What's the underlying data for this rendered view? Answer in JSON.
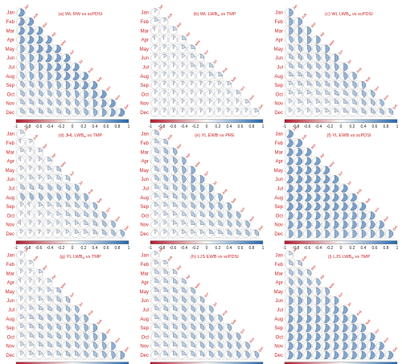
{
  "chart_data": {
    "type": "heatmap",
    "chart_kind": "correlogram-lower-triangle-pie",
    "rows": [
      "Jan",
      "Feb",
      "Mar",
      "Apr",
      "May",
      "Jun",
      "Jul",
      "Aug",
      "Sep",
      "Oct",
      "Nov",
      "Dec"
    ],
    "row_label_color": "#cc2222",
    "diag_label_color": "#cc2222",
    "colorbar": {
      "ticks": [
        "-1",
        "-0.8",
        "-0.6",
        "-0.4",
        "-0.2",
        "0",
        "0.2",
        "0.4",
        "0.6",
        "0.8",
        "1"
      ],
      "range": [
        -1,
        1
      ],
      "neg_color": "#b2182b",
      "mid_color": "#f7f7f7",
      "pos_color": "#2166ac"
    },
    "panels": [
      {
        "title": "(a) WL RW vs scPDSI",
        "values": [
          [
            0.6
          ],
          [
            0.6,
            0.6
          ],
          [
            0.6,
            0.6,
            0.6
          ],
          [
            0.55,
            0.6,
            0.6,
            0.6
          ],
          [
            0.5,
            0.55,
            0.6,
            0.6,
            0.6
          ],
          [
            0.45,
            0.5,
            0.55,
            0.6,
            0.6,
            0.6
          ],
          [
            0.45,
            0.45,
            0.5,
            0.55,
            0.6,
            0.6,
            0.6
          ],
          [
            0.4,
            0.45,
            0.45,
            0.5,
            0.55,
            0.6,
            0.6,
            0.6
          ],
          [
            0.35,
            0.35,
            0.4,
            0.45,
            0.45,
            0.5,
            0.55,
            0.6,
            0.6
          ],
          [
            0.35,
            0.35,
            0.35,
            0.35,
            0.4,
            0.4,
            0.45,
            0.5,
            0.55,
            0.6
          ],
          [
            0.3,
            0.3,
            0.3,
            0.35,
            0.35,
            0.35,
            0.4,
            0.45,
            0.5,
            0.55,
            0.6
          ],
          [
            0.3,
            0.3,
            0.3,
            0.3,
            0.3,
            0.35,
            0.35,
            0.4,
            0.45,
            0.5,
            0.55,
            0.6
          ]
        ]
      },
      {
        "title": "(b) WL LWB",
        "title_sub": "w",
        "title_post": " vs TMP",
        "values": [
          [
            0.1
          ],
          [
            0.2,
            0.15
          ],
          [
            -0.1,
            0.1,
            0.2
          ],
          [
            -0.1,
            -0.05,
            0.1,
            0.25
          ],
          [
            0.1,
            0.1,
            0.1,
            0.2,
            0.25
          ],
          [
            0.1,
            0.15,
            0.1,
            0.15,
            0.2,
            0.25
          ],
          [
            0.1,
            0.1,
            0.1,
            0.1,
            0.2,
            0.2,
            0.25
          ],
          [
            0.1,
            0.1,
            0.1,
            0.1,
            0.1,
            0.1,
            0.2,
            0.25
          ],
          [
            0.1,
            0.1,
            0.1,
            0.1,
            0.1,
            0.1,
            0.1,
            0.15,
            0.2
          ],
          [
            0.1,
            0.1,
            0.1,
            0.1,
            0.1,
            0.1,
            0.1,
            0.1,
            0.15,
            0.2
          ],
          [
            0.1,
            0.1,
            0.1,
            0.1,
            0.1,
            0.1,
            0.1,
            0.1,
            0.1,
            0.1,
            0.2
          ],
          [
            0.1,
            0.1,
            0.1,
            0.1,
            0.1,
            0.1,
            0.1,
            0.1,
            0.1,
            0.1,
            0.1,
            0.2
          ]
        ]
      },
      {
        "title": "(c) WL LWB",
        "title_sub": "w",
        "title_post": " vs scPDSI",
        "values": [
          [
            0.5
          ],
          [
            0.5,
            0.5
          ],
          [
            0.5,
            0.5,
            0.5
          ],
          [
            0.4,
            0.45,
            0.5,
            0.5
          ],
          [
            0.35,
            0.4,
            0.45,
            0.45,
            0.5
          ],
          [
            0.3,
            0.35,
            0.35,
            0.4,
            0.45,
            0.5
          ],
          [
            0.3,
            0.3,
            0.35,
            0.35,
            0.4,
            0.45,
            0.5
          ],
          [
            0.25,
            0.25,
            0.3,
            0.35,
            0.35,
            0.4,
            0.45,
            0.45
          ],
          [
            0.2,
            0.25,
            0.25,
            0.3,
            0.3,
            0.35,
            0.4,
            0.4,
            0.45
          ],
          [
            0.2,
            0.2,
            0.2,
            0.25,
            0.25,
            0.3,
            0.3,
            0.35,
            0.4,
            0.4
          ],
          [
            0.15,
            0.2,
            0.2,
            0.2,
            0.2,
            0.25,
            0.25,
            0.3,
            0.35,
            0.35,
            0.4
          ],
          [
            0.15,
            0.15,
            0.15,
            0.2,
            0.2,
            0.2,
            0.25,
            0.25,
            0.3,
            0.3,
            0.35,
            0.35
          ]
        ]
      },
      {
        "title": "(d) JHL LWB",
        "title_sub": "w",
        "title_post": " vs TMP",
        "values": [
          [
            0.2
          ],
          [
            -0.1,
            0.15
          ],
          [
            0.2,
            0.1,
            0.2
          ],
          [
            -0.1,
            0.1,
            0.15,
            0.25
          ],
          [
            0.15,
            0.1,
            0.15,
            0.2,
            0.3
          ],
          [
            0.15,
            0.2,
            0.15,
            0.2,
            0.25,
            0.3
          ],
          [
            0.3,
            0.3,
            0.3,
            0.35,
            0.35,
            0.35,
            0.4
          ],
          [
            0.4,
            0.4,
            0.4,
            0.4,
            0.4,
            0.4,
            0.4,
            0.45
          ],
          [
            0.15,
            -0.1,
            0.2,
            0.2,
            0.25,
            0.25,
            0.3,
            0.35,
            0.4
          ],
          [
            0.1,
            -0.1,
            0.15,
            0.15,
            0.2,
            0.25,
            0.3,
            0.3,
            0.35,
            0.4
          ],
          [
            -0.15,
            0.1,
            0.1,
            0.15,
            0.15,
            0.2,
            0.2,
            0.25,
            0.3,
            0.35,
            0.4
          ],
          [
            0.1,
            0.1,
            0.1,
            0.1,
            0.15,
            0.15,
            0.2,
            0.2,
            0.25,
            0.3,
            0.35,
            0.4
          ]
        ]
      },
      {
        "title": "(e) YL EWB vs PRE",
        "values": [
          [
            0.3
          ],
          [
            0.25,
            0.3
          ],
          [
            0.3,
            0.35,
            0.4
          ],
          [
            0.3,
            0.35,
            0.4,
            0.45
          ],
          [
            0.3,
            0.35,
            0.4,
            0.45,
            0.5
          ],
          [
            0.3,
            0.35,
            0.4,
            0.45,
            0.5,
            0.5
          ],
          [
            0.25,
            0.3,
            0.35,
            0.4,
            0.45,
            0.45,
            0.5
          ],
          [
            0.2,
            0.25,
            0.3,
            0.35,
            0.4,
            0.4,
            0.45,
            0.45
          ],
          [
            0.2,
            0.2,
            0.25,
            0.3,
            0.35,
            0.35,
            0.4,
            0.4,
            0.45
          ],
          [
            0.15,
            0.2,
            0.2,
            0.25,
            0.3,
            0.3,
            0.35,
            0.35,
            0.4,
            0.4
          ],
          [
            0.15,
            0.15,
            0.2,
            0.2,
            0.25,
            0.25,
            0.3,
            0.3,
            0.35,
            0.35,
            0.4
          ],
          [
            0.1,
            0.15,
            0.15,
            0.2,
            0.2,
            0.2,
            0.25,
            0.25,
            0.3,
            0.3,
            0.35,
            0.35
          ]
        ]
      },
      {
        "title": "(f) YL EWB vs scPDSI",
        "values": [
          [
            0.6
          ],
          [
            0.6,
            0.6
          ],
          [
            0.6,
            0.6,
            0.6
          ],
          [
            0.6,
            0.6,
            0.6,
            0.6
          ],
          [
            0.6,
            0.6,
            0.6,
            0.6,
            0.6
          ],
          [
            0.6,
            0.6,
            0.6,
            0.6,
            0.6,
            0.6
          ],
          [
            0.6,
            0.6,
            0.6,
            0.6,
            0.6,
            0.6,
            0.6
          ],
          [
            0.6,
            0.6,
            0.6,
            0.6,
            0.6,
            0.6,
            0.6,
            0.6
          ],
          [
            0.6,
            0.6,
            0.6,
            0.6,
            0.6,
            0.6,
            0.6,
            0.6,
            0.6
          ],
          [
            0.55,
            0.55,
            0.55,
            0.55,
            0.55,
            0.55,
            0.55,
            0.55,
            0.55,
            0.55
          ],
          [
            0.55,
            0.55,
            0.55,
            0.55,
            0.55,
            0.55,
            0.55,
            0.55,
            0.55,
            0.55,
            0.55
          ],
          [
            0.5,
            0.5,
            0.5,
            0.5,
            0.5,
            0.5,
            0.5,
            0.5,
            0.5,
            0.5,
            0.5,
            0.5
          ]
        ]
      },
      {
        "title": "(g) YL LWB",
        "title_sub": "w",
        "title_post": " vs TMP",
        "values": [
          [
            0.1
          ],
          [
            0.1,
            0.15
          ],
          [
            0.1,
            0.1,
            0.2
          ],
          [
            -0.1,
            0.1,
            0.1,
            0.2
          ],
          [
            0.1,
            0.1,
            0.15,
            0.2,
            0.3
          ],
          [
            0.1,
            0.15,
            0.2,
            0.25,
            0.3,
            0.35
          ],
          [
            0.15,
            0.2,
            0.25,
            0.3,
            0.35,
            0.35,
            0.4
          ],
          [
            0.2,
            0.25,
            0.3,
            0.35,
            0.35,
            0.4,
            0.45,
            0.45
          ],
          [
            0.2,
            0.25,
            0.3,
            0.35,
            0.35,
            0.4,
            0.4,
            0.45,
            0.5
          ],
          [
            0.2,
            0.25,
            0.3,
            0.3,
            0.35,
            0.35,
            0.4,
            0.4,
            0.45,
            0.5
          ],
          [
            0.2,
            0.2,
            0.25,
            0.3,
            0.3,
            0.35,
            0.35,
            0.4,
            0.4,
            0.45,
            0.5
          ],
          [
            0.15,
            0.2,
            0.2,
            0.25,
            0.25,
            0.3,
            0.3,
            0.35,
            0.35,
            0.4,
            0.45,
            0.5
          ]
        ]
      },
      {
        "title": "(h) LJS EWB vs scPDSI",
        "values": [
          [
            0.15
          ],
          [
            0.2,
            0.2
          ],
          [
            0.25,
            0.25,
            0.25
          ],
          [
            0.25,
            0.25,
            0.3,
            0.3
          ],
          [
            0.25,
            0.25,
            0.3,
            0.3,
            0.35
          ],
          [
            0.25,
            0.3,
            0.3,
            0.35,
            0.35,
            0.35
          ],
          [
            0.25,
            0.3,
            0.3,
            0.35,
            0.35,
            0.4,
            0.4
          ],
          [
            0.25,
            0.3,
            0.3,
            0.35,
            0.35,
            0.4,
            0.4,
            0.4
          ],
          [
            0.25,
            0.3,
            0.3,
            0.35,
            0.35,
            0.35,
            0.4,
            0.4,
            0.4
          ],
          [
            0.25,
            0.25,
            0.3,
            0.3,
            0.35,
            0.35,
            0.35,
            0.4,
            0.4,
            0.4
          ],
          [
            0.25,
            0.25,
            0.25,
            0.3,
            0.3,
            0.35,
            0.35,
            0.35,
            0.4,
            0.4,
            0.4
          ],
          [
            0.2,
            0.25,
            0.25,
            0.25,
            0.3,
            0.3,
            0.35,
            0.35,
            0.35,
            0.4,
            0.4,
            0.4
          ]
        ]
      },
      {
        "title": "(i) LJS LWB",
        "title_sub": "w",
        "title_post": " vs TMP",
        "values": [
          [
            0.2
          ],
          [
            0.3,
            0.3
          ],
          [
            0.35,
            0.35,
            0.35
          ],
          [
            0.4,
            0.4,
            0.4,
            0.4
          ],
          [
            0.45,
            0.45,
            0.45,
            0.45,
            0.45
          ],
          [
            0.5,
            0.5,
            0.5,
            0.5,
            0.5,
            0.5
          ],
          [
            0.5,
            0.5,
            0.5,
            0.5,
            0.5,
            0.55,
            0.55
          ],
          [
            0.55,
            0.55,
            0.55,
            0.55,
            0.55,
            0.55,
            0.55,
            0.55
          ],
          [
            0.55,
            0.55,
            0.55,
            0.55,
            0.55,
            0.55,
            0.55,
            0.55,
            0.55
          ],
          [
            0.55,
            0.55,
            0.55,
            0.55,
            0.55,
            0.55,
            0.55,
            0.55,
            0.55,
            0.55
          ],
          [
            0.55,
            0.55,
            0.55,
            0.55,
            0.55,
            0.55,
            0.55,
            0.55,
            0.55,
            0.55,
            0.55
          ],
          [
            0.55,
            0.55,
            0.55,
            0.55,
            0.55,
            0.55,
            0.55,
            0.55,
            0.55,
            0.55,
            0.55,
            0.55
          ]
        ]
      }
    ]
  }
}
